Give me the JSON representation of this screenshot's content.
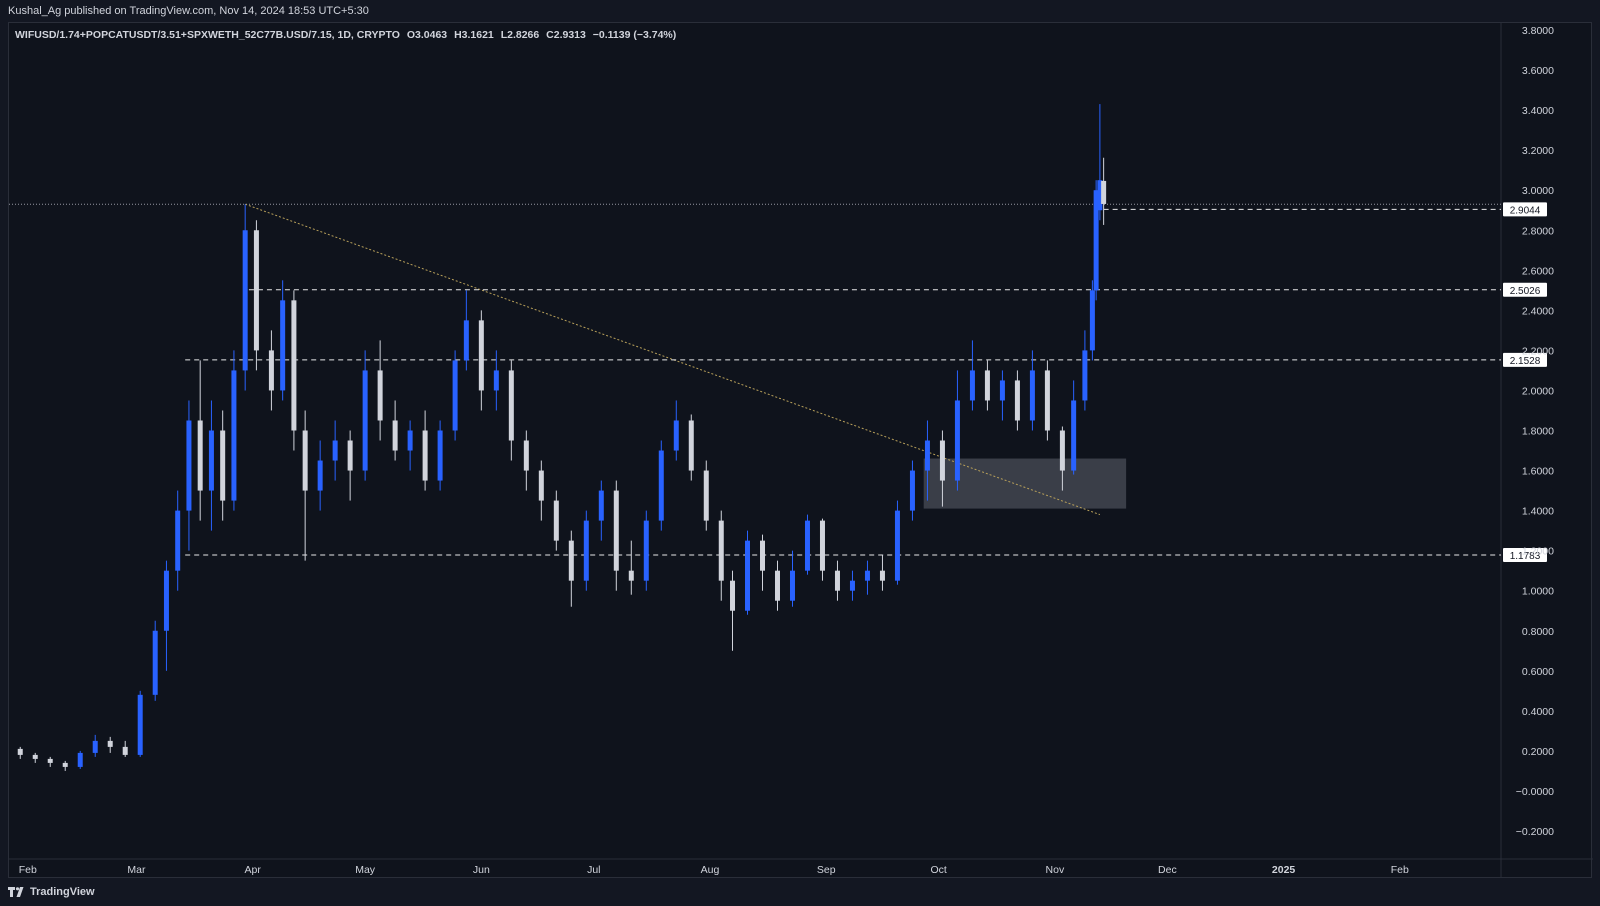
{
  "header": {
    "attribution": "Kushal_Ag published on TradingView.com, Nov 14, 2024 18:53 UTC+5:30"
  },
  "legend": {
    "symbol": "WIFUSD/1.74+POPCATUSDT/3.51+SPXWETH_52C77B.USD/7.15, 1D, CRYPTO",
    "open": "O3.0463",
    "high": "H3.1621",
    "low": "L2.8266",
    "close": "C2.9313",
    "change": "−0.1139 (−3.74%)"
  },
  "footer": {
    "brand": "TradingView",
    "logo_icon": "tradingview-logo-icon"
  },
  "colors": {
    "background": "#131722",
    "up_candle": "#2962ff",
    "down_candle": "#d1d4dc",
    "level_line": "#ffffff",
    "trendline": "#b8a05a",
    "zone": "#4a4e57",
    "text": "#d1d4dc"
  },
  "chart_data": {
    "type": "candlestick",
    "title": "WIFUSD/1.74+POPCATUSDT/3.51+SPXWETH_52C77B.USD/7.15, 1D, CRYPTO",
    "x_axis": {
      "ticks": [
        "Feb",
        "Mar",
        "Apr",
        "May",
        "Jun",
        "Jul",
        "Aug",
        "Sep",
        "Oct",
        "Nov",
        "Dec",
        "2025",
        "Feb"
      ],
      "range": [
        "2024-01-27",
        "2025-02-28"
      ]
    },
    "y_axis": {
      "ticks": [
        "3.8000",
        "3.6000",
        "3.4000",
        "3.2000",
        "3.0000",
        "2.8000",
        "2.6000",
        "2.4000",
        "2.2000",
        "2.0000",
        "1.8000",
        "1.6000",
        "1.4000",
        "1.2000",
        "1.0000",
        "0.8000",
        "0.6000",
        "0.4000",
        "0.2000",
        "−0.0000",
        "−0.2000"
      ],
      "range": [
        -0.2,
        3.8
      ],
      "position": "right"
    },
    "levels": [
      {
        "value": 2.9044,
        "label": "2.9044",
        "style": "dashed",
        "from": "2024-11-14"
      },
      {
        "value": 2.5026,
        "label": "2.5026",
        "style": "dashed",
        "from": "2024-03-31"
      },
      {
        "value": 2.1528,
        "label": "2.1528",
        "style": "dashed",
        "from": "2024-03-14"
      },
      {
        "value": 1.1783,
        "label": "1.1783",
        "style": "dashed",
        "from": "2024-03-14"
      }
    ],
    "high_reference": {
      "value": 2.93,
      "style": "dotted"
    },
    "trendline": {
      "start": [
        "2024-03-30",
        2.93
      ],
      "end": [
        "2024-11-13",
        1.38
      ]
    },
    "zone": {
      "from": "2024-09-27",
      "to": "2024-11-20",
      "low": 1.41,
      "high": 1.66
    },
    "candles": [
      {
        "date": "2024-01-26",
        "o": 0.19,
        "h": 0.23,
        "l": 0.16,
        "c": 0.21
      },
      {
        "date": "2024-01-30",
        "o": 0.21,
        "h": 0.22,
        "l": 0.16,
        "c": 0.18
      },
      {
        "date": "2024-02-03",
        "o": 0.18,
        "h": 0.19,
        "l": 0.14,
        "c": 0.16
      },
      {
        "date": "2024-02-07",
        "o": 0.16,
        "h": 0.17,
        "l": 0.12,
        "c": 0.14
      },
      {
        "date": "2024-02-11",
        "o": 0.14,
        "h": 0.15,
        "l": 0.1,
        "c": 0.12
      },
      {
        "date": "2024-02-15",
        "o": 0.12,
        "h": 0.2,
        "l": 0.11,
        "c": 0.19
      },
      {
        "date": "2024-02-19",
        "o": 0.19,
        "h": 0.28,
        "l": 0.17,
        "c": 0.25
      },
      {
        "date": "2024-02-23",
        "o": 0.25,
        "h": 0.27,
        "l": 0.19,
        "c": 0.22
      },
      {
        "date": "2024-02-27",
        "o": 0.22,
        "h": 0.25,
        "l": 0.17,
        "c": 0.18
      },
      {
        "date": "2024-03-02",
        "o": 0.18,
        "h": 0.5,
        "l": 0.17,
        "c": 0.48
      },
      {
        "date": "2024-03-06",
        "o": 0.48,
        "h": 0.85,
        "l": 0.45,
        "c": 0.8
      },
      {
        "date": "2024-03-09",
        "o": 0.8,
        "h": 1.15,
        "l": 0.6,
        "c": 1.1
      },
      {
        "date": "2024-03-12",
        "o": 1.1,
        "h": 1.5,
        "l": 1.0,
        "c": 1.4
      },
      {
        "date": "2024-03-15",
        "o": 1.4,
        "h": 1.95,
        "l": 1.2,
        "c": 1.85
      },
      {
        "date": "2024-03-18",
        "o": 1.85,
        "h": 2.15,
        "l": 1.35,
        "c": 1.5
      },
      {
        "date": "2024-03-21",
        "o": 1.5,
        "h": 1.95,
        "l": 1.3,
        "c": 1.8
      },
      {
        "date": "2024-03-24",
        "o": 1.8,
        "h": 1.9,
        "l": 1.35,
        "c": 1.45
      },
      {
        "date": "2024-03-27",
        "o": 1.45,
        "h": 2.2,
        "l": 1.4,
        "c": 2.1
      },
      {
        "date": "2024-03-30",
        "o": 2.1,
        "h": 2.93,
        "l": 2.0,
        "c": 2.8
      },
      {
        "date": "2024-04-02",
        "o": 2.8,
        "h": 2.85,
        "l": 2.1,
        "c": 2.2
      },
      {
        "date": "2024-04-06",
        "o": 2.2,
        "h": 2.3,
        "l": 1.9,
        "c": 2.0
      },
      {
        "date": "2024-04-09",
        "o": 2.0,
        "h": 2.55,
        "l": 1.95,
        "c": 2.45
      },
      {
        "date": "2024-04-12",
        "o": 2.45,
        "h": 2.5,
        "l": 1.7,
        "c": 1.8
      },
      {
        "date": "2024-04-15",
        "o": 1.8,
        "h": 1.9,
        "l": 1.15,
        "c": 1.5
      },
      {
        "date": "2024-04-19",
        "o": 1.5,
        "h": 1.75,
        "l": 1.4,
        "c": 1.65
      },
      {
        "date": "2024-04-23",
        "o": 1.65,
        "h": 1.85,
        "l": 1.55,
        "c": 1.75
      },
      {
        "date": "2024-04-27",
        "o": 1.75,
        "h": 1.8,
        "l": 1.45,
        "c": 1.6
      },
      {
        "date": "2024-05-01",
        "o": 1.6,
        "h": 2.2,
        "l": 1.55,
        "c": 2.1
      },
      {
        "date": "2024-05-05",
        "o": 2.1,
        "h": 2.25,
        "l": 1.75,
        "c": 1.85
      },
      {
        "date": "2024-05-09",
        "o": 1.85,
        "h": 1.95,
        "l": 1.65,
        "c": 1.7
      },
      {
        "date": "2024-05-13",
        "o": 1.7,
        "h": 1.85,
        "l": 1.6,
        "c": 1.8
      },
      {
        "date": "2024-05-17",
        "o": 1.8,
        "h": 1.9,
        "l": 1.5,
        "c": 1.55
      },
      {
        "date": "2024-05-21",
        "o": 1.55,
        "h": 1.85,
        "l": 1.5,
        "c": 1.8
      },
      {
        "date": "2024-05-25",
        "o": 1.8,
        "h": 2.2,
        "l": 1.75,
        "c": 2.15
      },
      {
        "date": "2024-05-28",
        "o": 2.15,
        "h": 2.5,
        "l": 2.1,
        "c": 2.35
      },
      {
        "date": "2024-06-01",
        "o": 2.35,
        "h": 2.4,
        "l": 1.9,
        "c": 2.0
      },
      {
        "date": "2024-06-05",
        "o": 2.0,
        "h": 2.2,
        "l": 1.9,
        "c": 2.1
      },
      {
        "date": "2024-06-09",
        "o": 2.1,
        "h": 2.15,
        "l": 1.65,
        "c": 1.75
      },
      {
        "date": "2024-06-13",
        "o": 1.75,
        "h": 1.8,
        "l": 1.5,
        "c": 1.6
      },
      {
        "date": "2024-06-17",
        "o": 1.6,
        "h": 1.65,
        "l": 1.35,
        "c": 1.45
      },
      {
        "date": "2024-06-21",
        "o": 1.45,
        "h": 1.5,
        "l": 1.2,
        "c": 1.25
      },
      {
        "date": "2024-06-25",
        "o": 1.25,
        "h": 1.3,
        "l": 0.92,
        "c": 1.05
      },
      {
        "date": "2024-06-29",
        "o": 1.05,
        "h": 1.4,
        "l": 1.0,
        "c": 1.35
      },
      {
        "date": "2024-07-03",
        "o": 1.35,
        "h": 1.55,
        "l": 1.25,
        "c": 1.5
      },
      {
        "date": "2024-07-07",
        "o": 1.5,
        "h": 1.55,
        "l": 1.0,
        "c": 1.1
      },
      {
        "date": "2024-07-11",
        "o": 1.1,
        "h": 1.25,
        "l": 0.98,
        "c": 1.05
      },
      {
        "date": "2024-07-15",
        "o": 1.05,
        "h": 1.4,
        "l": 1.0,
        "c": 1.35
      },
      {
        "date": "2024-07-19",
        "o": 1.35,
        "h": 1.75,
        "l": 1.3,
        "c": 1.7
      },
      {
        "date": "2024-07-23",
        "o": 1.7,
        "h": 1.95,
        "l": 1.65,
        "c": 1.85
      },
      {
        "date": "2024-07-27",
        "o": 1.85,
        "h": 1.88,
        "l": 1.55,
        "c": 1.6
      },
      {
        "date": "2024-07-31",
        "o": 1.6,
        "h": 1.65,
        "l": 1.3,
        "c": 1.35
      },
      {
        "date": "2024-08-04",
        "o": 1.35,
        "h": 1.4,
        "l": 0.95,
        "c": 1.05
      },
      {
        "date": "2024-08-07",
        "o": 1.05,
        "h": 1.1,
        "l": 0.7,
        "c": 0.9
      },
      {
        "date": "2024-08-11",
        "o": 0.9,
        "h": 1.3,
        "l": 0.88,
        "c": 1.25
      },
      {
        "date": "2024-08-15",
        "o": 1.25,
        "h": 1.28,
        "l": 1.0,
        "c": 1.1
      },
      {
        "date": "2024-08-19",
        "o": 1.1,
        "h": 1.15,
        "l": 0.9,
        "c": 0.95
      },
      {
        "date": "2024-08-23",
        "o": 0.95,
        "h": 1.2,
        "l": 0.92,
        "c": 1.1
      },
      {
        "date": "2024-08-27",
        "o": 1.1,
        "h": 1.38,
        "l": 1.08,
        "c": 1.35
      },
      {
        "date": "2024-08-31",
        "o": 1.35,
        "h": 1.36,
        "l": 1.05,
        "c": 1.1
      },
      {
        "date": "2024-09-04",
        "o": 1.1,
        "h": 1.15,
        "l": 0.95,
        "c": 1.0
      },
      {
        "date": "2024-09-08",
        "o": 1.0,
        "h": 1.1,
        "l": 0.95,
        "c": 1.05
      },
      {
        "date": "2024-09-12",
        "o": 1.05,
        "h": 1.15,
        "l": 0.98,
        "c": 1.1
      },
      {
        "date": "2024-09-16",
        "o": 1.1,
        "h": 1.18,
        "l": 1.0,
        "c": 1.05
      },
      {
        "date": "2024-09-20",
        "o": 1.05,
        "h": 1.45,
        "l": 1.03,
        "c": 1.4
      },
      {
        "date": "2024-09-24",
        "o": 1.4,
        "h": 1.65,
        "l": 1.35,
        "c": 1.6
      },
      {
        "date": "2024-09-28",
        "o": 1.6,
        "h": 1.85,
        "l": 1.45,
        "c": 1.75
      },
      {
        "date": "2024-10-02",
        "o": 1.75,
        "h": 1.8,
        "l": 1.42,
        "c": 1.55
      },
      {
        "date": "2024-10-06",
        "o": 1.55,
        "h": 2.1,
        "l": 1.5,
        "c": 1.95
      },
      {
        "date": "2024-10-10",
        "o": 1.95,
        "h": 2.25,
        "l": 1.9,
        "c": 2.1
      },
      {
        "date": "2024-10-14",
        "o": 2.1,
        "h": 2.15,
        "l": 1.9,
        "c": 1.95
      },
      {
        "date": "2024-10-18",
        "o": 1.95,
        "h": 2.1,
        "l": 1.85,
        "c": 2.05
      },
      {
        "date": "2024-10-22",
        "o": 2.05,
        "h": 2.1,
        "l": 1.8,
        "c": 1.85
      },
      {
        "date": "2024-10-26",
        "o": 1.85,
        "h": 2.2,
        "l": 1.8,
        "c": 2.1
      },
      {
        "date": "2024-10-30",
        "o": 2.1,
        "h": 2.15,
        "l": 1.75,
        "c": 1.8
      },
      {
        "date": "2024-11-03",
        "o": 1.8,
        "h": 1.82,
        "l": 1.5,
        "c": 1.6
      },
      {
        "date": "2024-11-06",
        "o": 1.6,
        "h": 2.05,
        "l": 1.58,
        "c": 1.95
      },
      {
        "date": "2024-11-09",
        "o": 1.95,
        "h": 2.3,
        "l": 1.9,
        "c": 2.2
      },
      {
        "date": "2024-11-11",
        "o": 2.2,
        "h": 2.55,
        "l": 2.15,
        "c": 2.5
      },
      {
        "date": "2024-11-12",
        "o": 2.5,
        "h": 3.05,
        "l": 2.45,
        "c": 3.0
      },
      {
        "date": "2024-11-13",
        "o": 2.9,
        "h": 3.43,
        "l": 2.85,
        "c": 3.05
      },
      {
        "date": "2024-11-14",
        "o": 3.0463,
        "h": 3.1621,
        "l": 2.8266,
        "c": 2.9313
      }
    ]
  }
}
